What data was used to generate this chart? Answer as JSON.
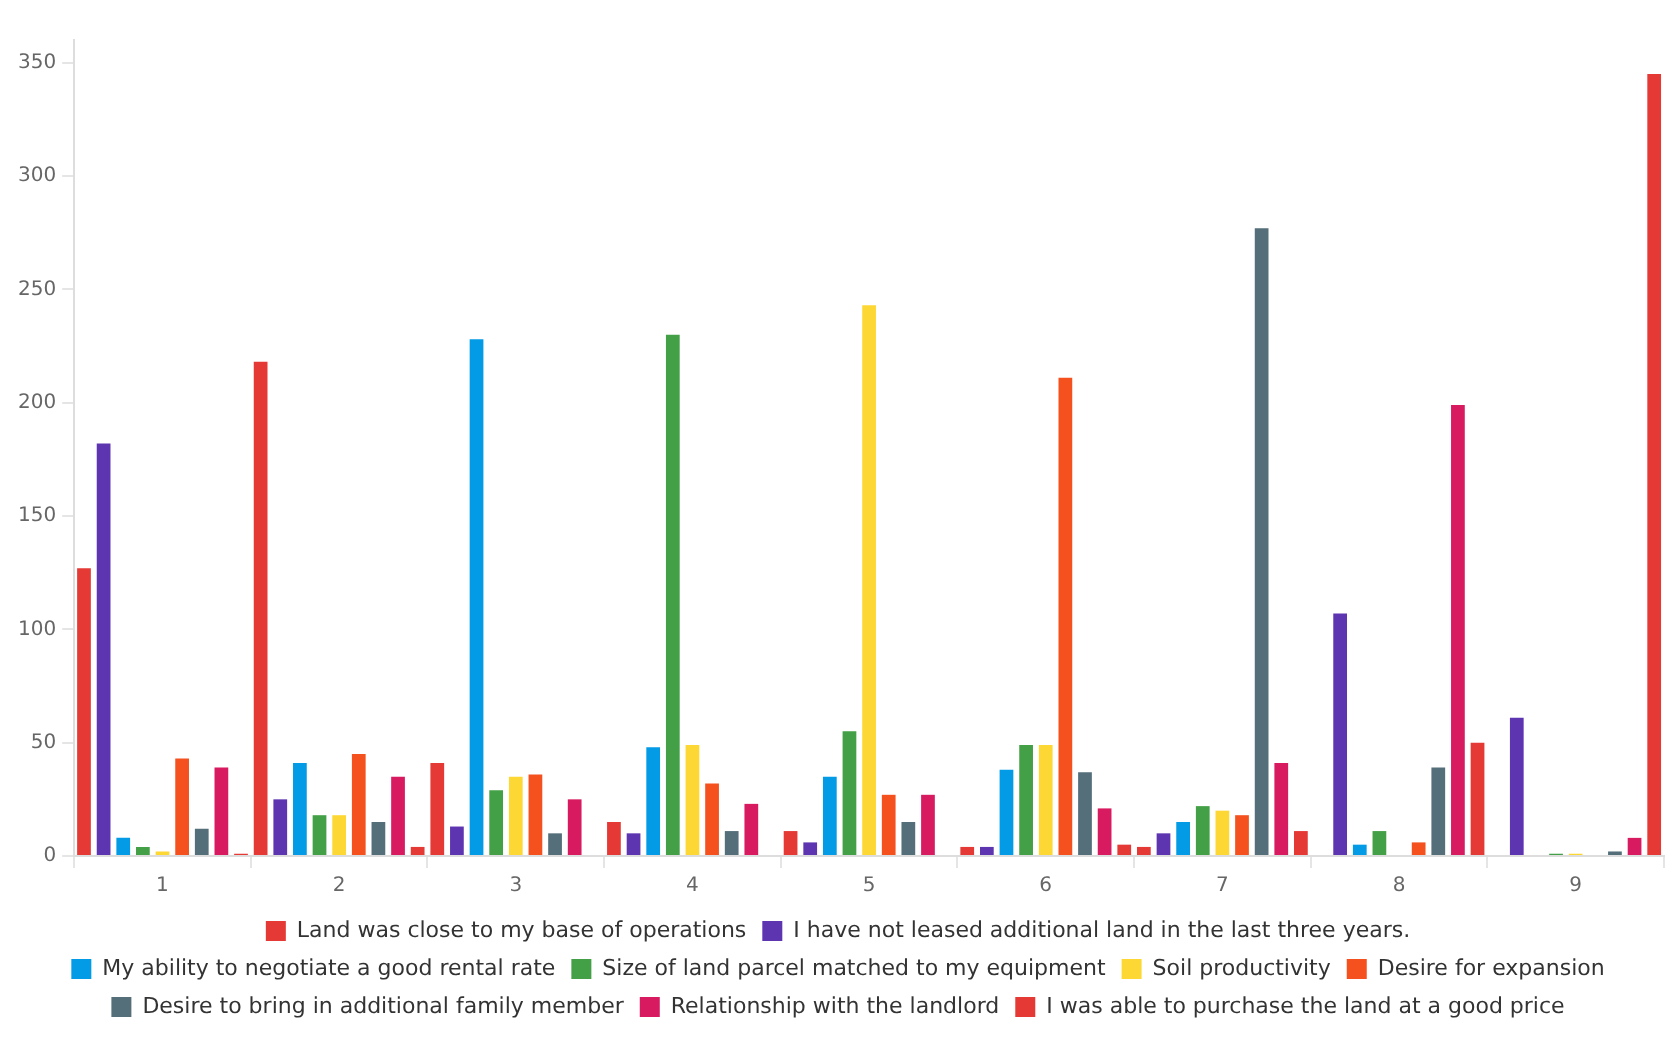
{
  "chart_data": {
    "type": "bar",
    "categories": [
      "1",
      "2",
      "3",
      "4",
      "5",
      "6",
      "7",
      "8",
      "9"
    ],
    "ylim": [
      0,
      360
    ],
    "yticks": [
      0,
      50,
      100,
      150,
      200,
      250,
      300,
      350
    ],
    "grid": false,
    "legend": "bottom",
    "series": [
      {
        "name": "Land was close to my base of operations",
        "color": "#e53935",
        "values": [
          127,
          218,
          41,
          15,
          11,
          4,
          4,
          0,
          0
        ]
      },
      {
        "name": "I have not leased additional land in the last three years.",
        "color": "#5e35b1",
        "values": [
          182,
          25,
          13,
          10,
          6,
          4,
          10,
          107,
          61
        ]
      },
      {
        "name": "My ability to negotiate a good rental rate",
        "color": "#039be5",
        "values": [
          8,
          41,
          228,
          48,
          35,
          38,
          15,
          5,
          0
        ]
      },
      {
        "name": "Size of land parcel matched to my equipment",
        "color": "#43a047",
        "values": [
          4,
          18,
          29,
          230,
          55,
          49,
          22,
          11,
          1
        ]
      },
      {
        "name": "Soil productivity",
        "color": "#fdd835",
        "values": [
          2,
          18,
          35,
          49,
          243,
          49,
          20,
          0,
          1
        ]
      },
      {
        "name": "Desire for expansion",
        "color": "#f4511e",
        "values": [
          43,
          45,
          36,
          32,
          27,
          211,
          18,
          6,
          0
        ]
      },
      {
        "name": "Desire to bring in additional family member",
        "color": "#546e7a",
        "values": [
          12,
          15,
          10,
          11,
          15,
          37,
          277,
          39,
          2
        ]
      },
      {
        "name": "Relationship with the landlord",
        "color": "#d81b60",
        "values": [
          39,
          35,
          25,
          23,
          27,
          21,
          41,
          199,
          8
        ]
      },
      {
        "name": "I was able to purchase the land at a good price",
        "color": "#e53935",
        "values": [
          1,
          4,
          0,
          0,
          0,
          5,
          11,
          50,
          345
        ]
      }
    ]
  }
}
